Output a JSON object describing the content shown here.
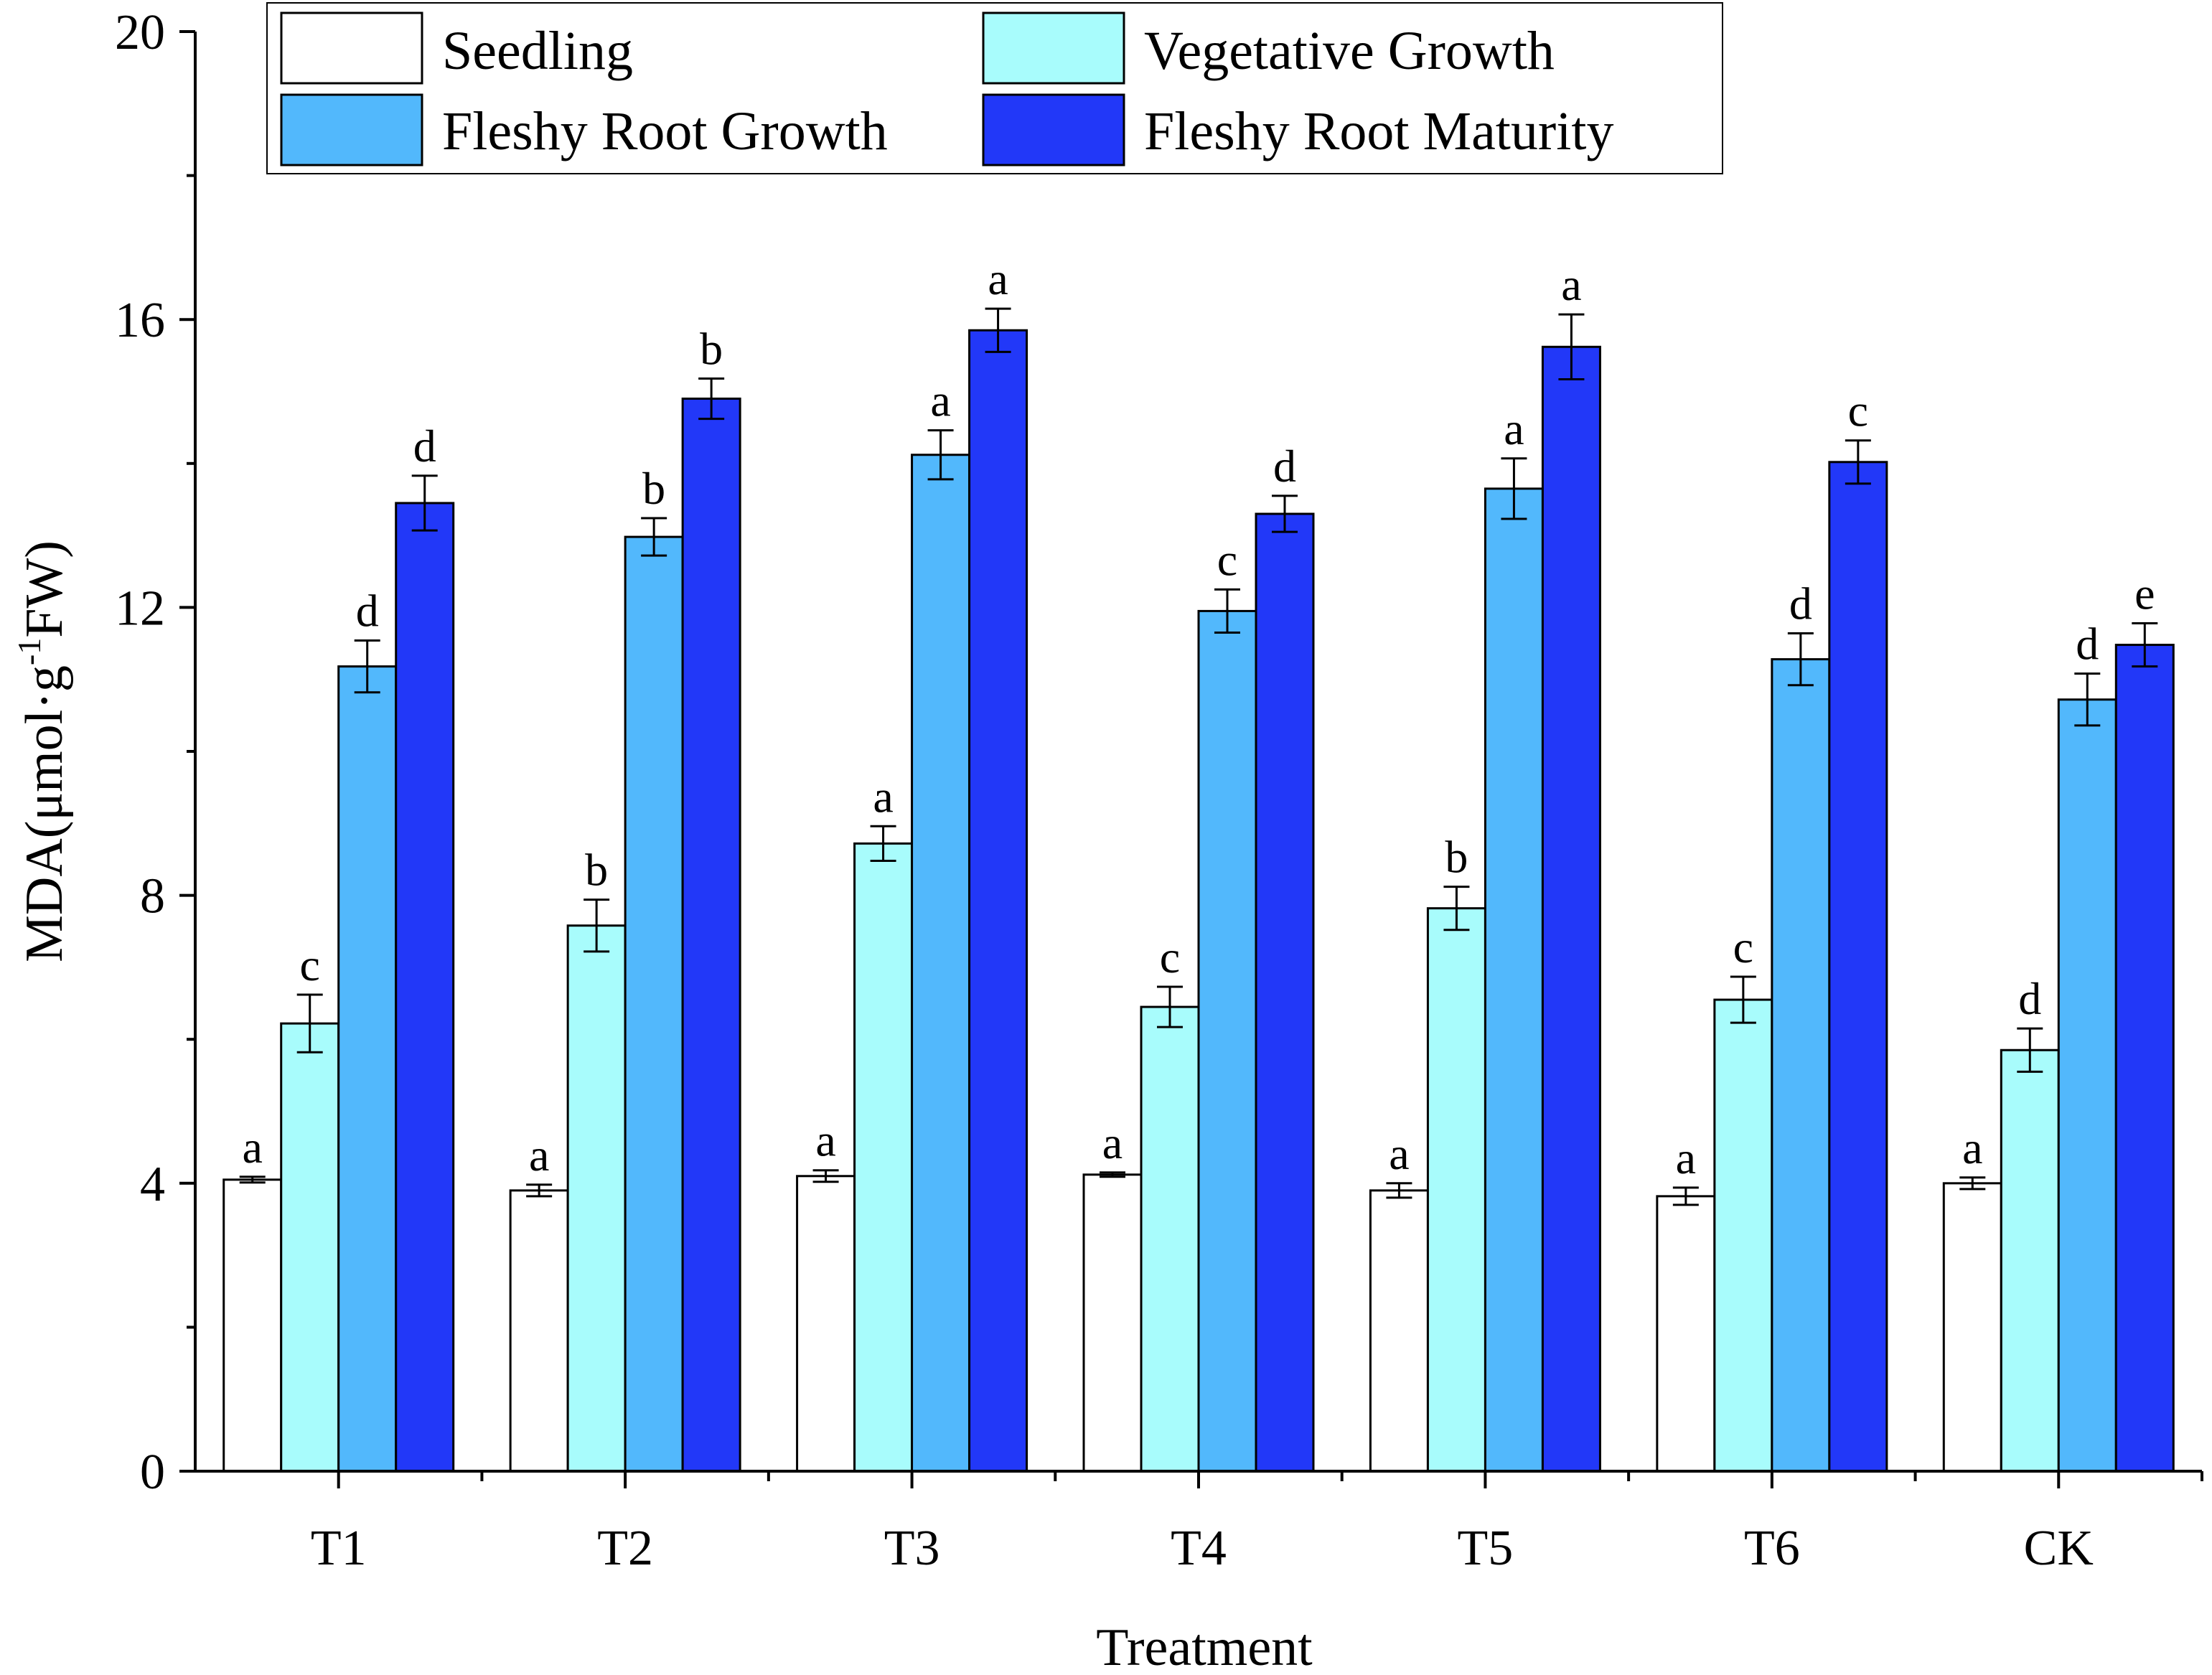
{
  "chart_data": {
    "type": "bar",
    "title": "",
    "xlabel": "Treatment",
    "ylabel": "MDA(μmol·g-1FW)",
    "ylabel_parts": {
      "main": "MDA(μmol·g",
      "superscript": "-1",
      "tail": "FW)"
    },
    "ylim": [
      0,
      20
    ],
    "yticks": [
      0,
      4,
      8,
      12,
      16,
      20
    ],
    "categories": [
      "T1",
      "T2",
      "T3",
      "T4",
      "T5",
      "T6",
      "CK"
    ],
    "legend_position": "top-left",
    "series": [
      {
        "name": "Seedling",
        "color": "#ffffff",
        "values": [
          4.05,
          3.9,
          4.1,
          4.12,
          3.9,
          3.82,
          4.0
        ],
        "errors": [
          0.04,
          0.08,
          0.08,
          0.03,
          0.1,
          0.12,
          0.08
        ],
        "letters": [
          "a",
          "a",
          "a",
          "a",
          "a",
          "a",
          "a"
        ]
      },
      {
        "name": "Vegetative Growth",
        "color": "#a8fcfc",
        "values": [
          6.22,
          7.58,
          8.72,
          6.45,
          7.82,
          6.55,
          5.85
        ],
        "errors": [
          0.4,
          0.36,
          0.24,
          0.28,
          0.3,
          0.32,
          0.3
        ],
        "letters": [
          "c",
          "b",
          "a",
          "c",
          "b",
          "c",
          "d"
        ]
      },
      {
        "name": "Fleshy Root Growth",
        "color": "#52b8fc",
        "values": [
          11.18,
          12.98,
          14.12,
          11.95,
          13.65,
          11.28,
          10.72
        ],
        "errors": [
          0.36,
          0.26,
          0.34,
          0.3,
          0.42,
          0.36,
          0.36
        ],
        "letters": [
          "d",
          "b",
          "a",
          "c",
          "a",
          "d",
          "d"
        ]
      },
      {
        "name": "Fleshy Root Maturity",
        "color": "#2238f8",
        "values": [
          13.45,
          14.9,
          15.85,
          13.3,
          15.62,
          14.02,
          11.48
        ],
        "errors": [
          0.38,
          0.28,
          0.3,
          0.25,
          0.45,
          0.3,
          0.3
        ],
        "letters": [
          "d",
          "b",
          "a",
          "d",
          "a",
          "c",
          "e"
        ]
      }
    ]
  }
}
